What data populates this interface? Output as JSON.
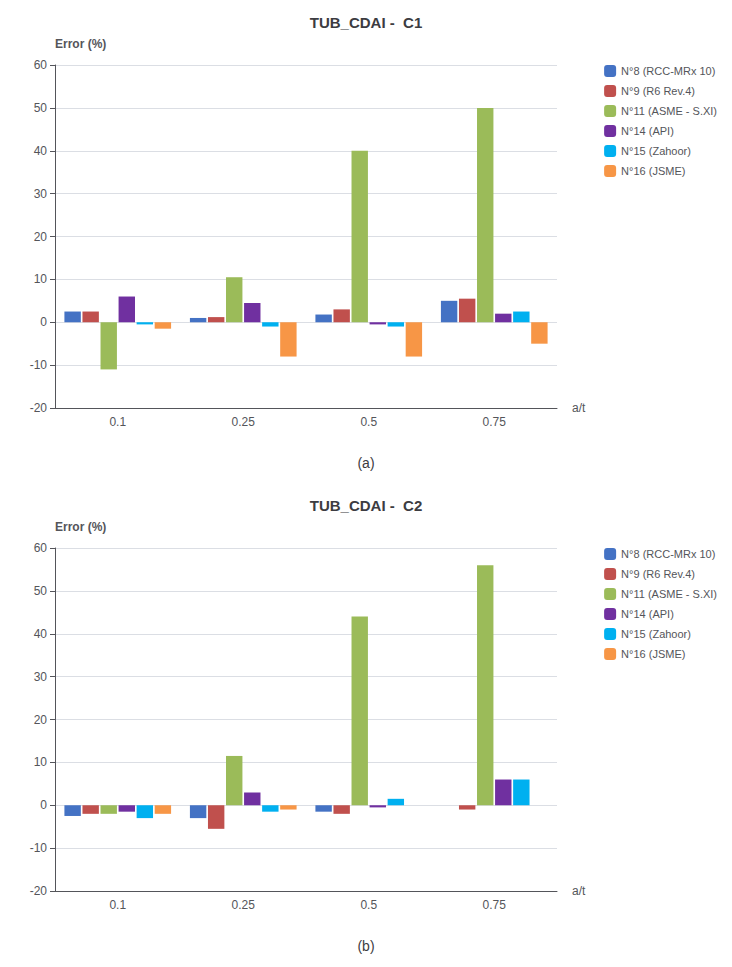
{
  "chart_data": [
    {
      "type": "bar",
      "title": "TUB_CDAI -  C1",
      "subtitle": "(a)",
      "xlabel": "a/t",
      "ylabel": "Error (%)",
      "categories": [
        "0.1",
        "0.25",
        "0.5",
        "0.75"
      ],
      "series": [
        {
          "name": "N°8 (RCC-MRx 10)",
          "color": "#4472C4",
          "values": [
            2.5,
            1.0,
            1.8,
            5.0
          ]
        },
        {
          "name": "N°9 (R6 Rev.4)",
          "color": "#C0504D",
          "values": [
            2.5,
            1.2,
            3.0,
            5.5
          ]
        },
        {
          "name": "N°11 (ASME - S.XI)",
          "color": "#9BBB59",
          "values": [
            -11.0,
            10.5,
            40.0,
            50.0
          ]
        },
        {
          "name": "N°14 (API)",
          "color": "#7030A0",
          "values": [
            6.0,
            4.5,
            -0.5,
            2.0
          ]
        },
        {
          "name": "N°15 (Zahoor)",
          "color": "#00B0F0",
          "values": [
            -0.5,
            -1.0,
            -1.0,
            2.5
          ]
        },
        {
          "name": "N°16 (JSME)",
          "color": "#F79646",
          "values": [
            -1.5,
            -8.0,
            -8.0,
            -5.0
          ]
        }
      ],
      "ylim": [
        -20,
        60
      ],
      "yticks": [
        -20,
        -10,
        0,
        10,
        20,
        30,
        40,
        50,
        60
      ],
      "grid": true,
      "legend": "right"
    },
    {
      "type": "bar",
      "title": "TUB_CDAI -  C2",
      "subtitle": "(b)",
      "xlabel": "a/t",
      "ylabel": "Error (%)",
      "categories": [
        "0.1",
        "0.25",
        "0.5",
        "0.75"
      ],
      "series": [
        {
          "name": "N°8 (RCC-MRx 10)",
          "color": "#4472C4",
          "values": [
            -2.5,
            -3.0,
            -1.5,
            0.0
          ]
        },
        {
          "name": "N°9 (R6 Rev.4)",
          "color": "#C0504D",
          "values": [
            -2.0,
            -5.5,
            -2.0,
            -1.0
          ]
        },
        {
          "name": "N°11 (ASME - S.XI)",
          "color": "#9BBB59",
          "values": [
            -2.0,
            11.5,
            44.0,
            56.0
          ]
        },
        {
          "name": "N°14 (API)",
          "color": "#7030A0",
          "values": [
            -1.5,
            3.0,
            -0.5,
            6.0
          ]
        },
        {
          "name": "N°15 (Zahoor)",
          "color": "#00B0F0",
          "values": [
            -3.0,
            -1.5,
            1.5,
            6.0
          ]
        },
        {
          "name": "N°16 (JSME)",
          "color": "#F79646",
          "values": [
            -2.0,
            -1.0,
            0.0,
            0.0
          ]
        }
      ],
      "ylim": [
        -20,
        60
      ],
      "yticks": [
        -20,
        -10,
        0,
        10,
        20,
        30,
        40,
        50,
        60
      ],
      "grid": true,
      "legend": "right"
    }
  ]
}
